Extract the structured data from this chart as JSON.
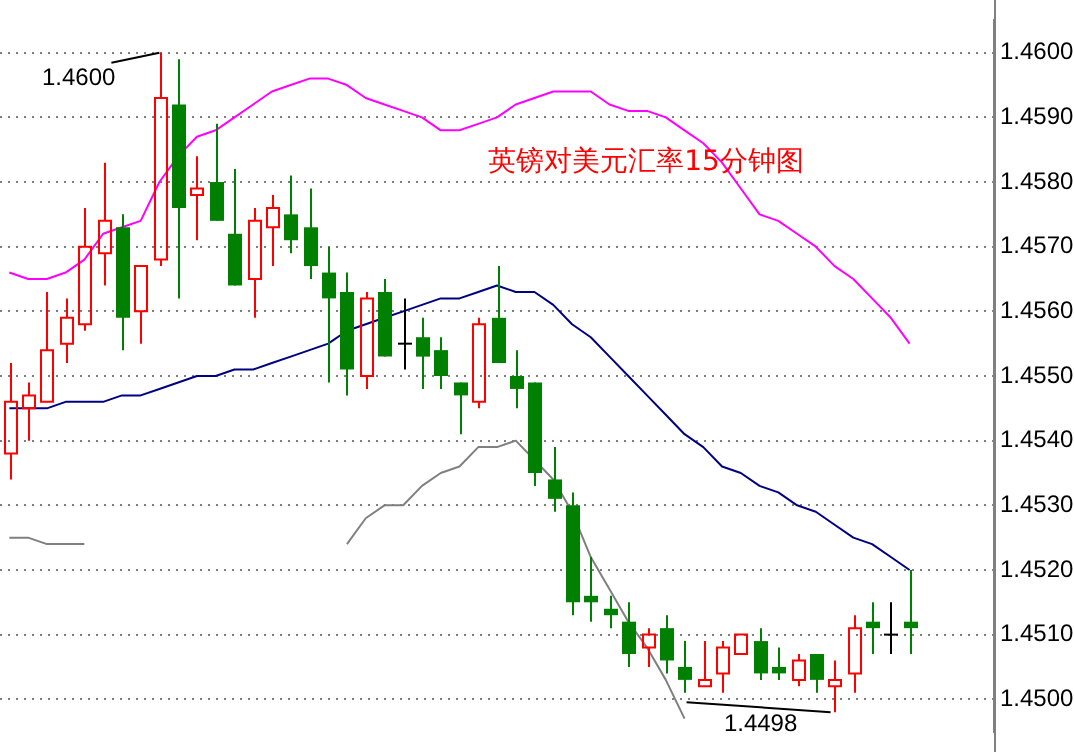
{
  "chart_data": {
    "type": "candlestick",
    "title": "英镑对美元汇率15分钟图",
    "categories": [
      null,
      null,
      null,
      null,
      null,
      null,
      null,
      null,
      null,
      null,
      null,
      null,
      null,
      null,
      null,
      null,
      null,
      null,
      null,
      null,
      null,
      null,
      null,
      null,
      null,
      null,
      null,
      null,
      null,
      null,
      null,
      null,
      null,
      null,
      null,
      null,
      null,
      null,
      null,
      null,
      null,
      null,
      null,
      null,
      null,
      null,
      null,
      null,
      null,
      null,
      null,
      null,
      null
    ],
    "ohlc": [
      [
        1.4538,
        1.4552,
        1.4534,
        1.4546
      ],
      [
        1.4545,
        1.4549,
        1.454,
        1.4547
      ],
      [
        1.4546,
        1.4563,
        1.4546,
        1.4554
      ],
      [
        1.4555,
        1.4562,
        1.4552,
        1.4559
      ],
      [
        1.4558,
        1.4576,
        1.4557,
        1.457
      ],
      [
        1.4569,
        1.4583,
        1.4564,
        1.4574
      ],
      [
        1.4573,
        1.4575,
        1.4554,
        1.4559
      ],
      [
        1.456,
        1.4567,
        1.4555,
        1.4567
      ],
      [
        1.4568,
        1.46,
        1.4567,
        1.4593
      ],
      [
        1.4592,
        1.4599,
        1.4562,
        1.4576
      ],
      [
        1.4578,
        1.4584,
        1.4571,
        1.4579
      ],
      [
        1.458,
        1.4589,
        1.4574,
        1.4574
      ],
      [
        1.4572,
        1.4582,
        1.4564,
        1.4564
      ],
      [
        1.4565,
        1.4576,
        1.4559,
        1.4574
      ],
      [
        1.4573,
        1.4578,
        1.4567,
        1.4576
      ],
      [
        1.4575,
        1.4581,
        1.4569,
        1.4571
      ],
      [
        1.4573,
        1.4579,
        1.4565,
        1.4567
      ],
      [
        1.4566,
        1.457,
        1.4549,
        1.4562
      ],
      [
        1.4563,
        1.4566,
        1.4547,
        1.4551
      ],
      [
        1.455,
        1.4563,
        1.4548,
        1.4562
      ],
      [
        1.4563,
        1.4565,
        1.4553,
        1.4553
      ],
      [
        1.4555,
        1.4562,
        1.4551,
        1.4555
      ],
      [
        1.4556,
        1.4559,
        1.4548,
        1.4553
      ],
      [
        1.4554,
        1.4556,
        1.4548,
        1.455
      ],
      [
        1.4549,
        1.4549,
        1.4541,
        1.4547
      ],
      [
        1.4546,
        1.4559,
        1.4545,
        1.4558
      ],
      [
        1.4559,
        1.4567,
        1.4552,
        1.4552
      ],
      [
        1.455,
        1.4554,
        1.4545,
        1.4548
      ],
      [
        1.4549,
        1.4549,
        1.4533,
        1.4535
      ],
      [
        1.4534,
        1.4539,
        1.4529,
        1.4531
      ],
      [
        1.453,
        1.4532,
        1.4513,
        1.4515
      ],
      [
        1.4516,
        1.4522,
        1.4512,
        1.4515
      ],
      [
        1.4514,
        1.4516,
        1.4511,
        1.4513
      ],
      [
        1.4512,
        1.4515,
        1.4505,
        1.4507
      ],
      [
        1.4508,
        1.4511,
        1.4505,
        1.451
      ],
      [
        1.4511,
        1.4513,
        1.4504,
        1.4506
      ],
      [
        1.4505,
        1.4509,
        1.4501,
        1.4503
      ],
      [
        1.4502,
        1.4509,
        1.4502,
        1.4503
      ],
      [
        1.4504,
        1.4509,
        1.4501,
        1.4508
      ],
      [
        1.4507,
        1.451,
        1.4507,
        1.451
      ],
      [
        1.4509,
        1.4511,
        1.4503,
        1.4504
      ],
      [
        1.4505,
        1.4508,
        1.4503,
        1.4504
      ],
      [
        1.4503,
        1.4507,
        1.4502,
        1.4506
      ],
      [
        1.4507,
        1.4507,
        1.4501,
        1.4503
      ],
      [
        1.4502,
        1.4506,
        1.4498,
        1.4503
      ],
      [
        1.4504,
        1.4513,
        1.4501,
        1.4511
      ],
      [
        1.4512,
        1.4515,
        1.4507,
        1.4511
      ],
      [
        1.451,
        1.4515,
        1.4507,
        1.451
      ],
      [
        1.4512,
        1.452,
        1.4507,
        1.4511
      ],
      null,
      null,
      null,
      null
    ],
    "colors": [
      "#ff0000",
      "#ff0000",
      "#ff0000",
      "#ff0000",
      "#ff0000",
      "#ff0000",
      "#008000",
      "#ff0000",
      "#ff0000",
      "#008000",
      "#ff0000",
      "#008000",
      "#008000",
      "#ff0000",
      "#ff0000",
      "#008000",
      "#008000",
      "#008000",
      "#008000",
      "#ff0000",
      "#008000",
      "#000000",
      "#008000",
      "#008000",
      "#008000",
      "#ff0000",
      "#008000",
      "#008000",
      "#008000",
      "#008000",
      "#008000",
      "#008000",
      "#008000",
      "#008000",
      "#ff0000",
      "#008000",
      "#008000",
      "#ff0000",
      "#ff0000",
      "#ff0000",
      "#008000",
      "#008000",
      "#ff0000",
      "#008000",
      "#ff0000",
      "#ff0000",
      "#008000",
      "#000000",
      "#008000",
      null,
      null,
      null,
      null
    ],
    "series": [
      {
        "type": "line",
        "color": "#ff00ff",
        "values": [
          1.4566,
          1.4565,
          1.4565,
          1.4566,
          1.4568,
          1.4572,
          1.4573,
          1.4574,
          1.458,
          1.4584,
          1.4587,
          1.4588,
          1.459,
          1.4592,
          1.4594,
          1.4595,
          1.4596,
          1.4596,
          1.4595,
          1.4593,
          1.4592,
          1.4591,
          1.459,
          1.4588,
          1.4588,
          1.4589,
          1.459,
          1.4592,
          1.4593,
          1.4594,
          1.4594,
          1.4594,
          1.4592,
          1.4591,
          1.4591,
          1.459,
          1.4588,
          1.4586,
          1.4583,
          1.4579,
          1.4575,
          1.4574,
          1.4572,
          1.457,
          1.4567,
          1.4565,
          1.4562,
          1.4559,
          1.4555,
          null,
          null,
          null,
          null
        ]
      },
      {
        "type": "line",
        "color": "#000080",
        "values": [
          1.4545,
          1.4545,
          1.4545,
          1.4546,
          1.4546,
          1.4546,
          1.4547,
          1.4547,
          1.4548,
          1.4549,
          1.455,
          1.455,
          1.4551,
          1.4551,
          1.4552,
          1.4553,
          1.4554,
          1.4555,
          1.4557,
          1.4558,
          1.4559,
          1.456,
          1.4561,
          1.4562,
          1.4562,
          1.4563,
          1.4564,
          1.4563,
          1.4563,
          1.4561,
          1.4558,
          1.4556,
          1.4553,
          1.455,
          1.4547,
          1.4544,
          1.4541,
          1.4539,
          1.4536,
          1.4535,
          1.4533,
          1.4532,
          1.453,
          1.4529,
          1.4527,
          1.4525,
          1.4524,
          1.4522,
          1.452,
          null,
          null,
          null,
          null
        ]
      },
      {
        "type": "line",
        "color": "#808080",
        "values": [
          1.4525,
          1.4525,
          1.4524,
          1.4524,
          1.4524,
          null,
          null,
          null,
          null,
          null,
          null,
          null,
          null,
          null,
          null,
          null,
          null,
          null,
          1.4524,
          1.4528,
          1.453,
          1.453,
          1.4533,
          1.4535,
          1.4536,
          1.4539,
          1.4539,
          1.454,
          1.4537,
          1.4534,
          1.4529,
          1.4522,
          1.4517,
          1.4512,
          1.4508,
          1.4503,
          1.4497,
          null,
          null,
          null,
          null,
          null,
          null,
          null,
          null,
          null,
          null,
          null,
          null,
          null,
          null,
          null,
          null
        ]
      }
    ],
    "ylim": [
      1.4495,
      1.4605
    ],
    "yticks": [
      {
        "value": 1.45,
        "label": "1.4500"
      },
      {
        "value": 1.451,
        "label": "1.4510"
      },
      {
        "value": 1.452,
        "label": "1.4520"
      },
      {
        "value": 1.453,
        "label": "1.4530"
      },
      {
        "value": 1.454,
        "label": "1.4540"
      },
      {
        "value": 1.455,
        "label": "1.4550"
      },
      {
        "value": 1.456,
        "label": "1.4560"
      },
      {
        "value": 1.457,
        "label": "1.4570"
      },
      {
        "value": 1.458,
        "label": "1.4580"
      },
      {
        "value": 1.459,
        "label": "1.4590"
      },
      {
        "value": 1.46,
        "label": "1.4600"
      }
    ],
    "grid": "y",
    "tick_labels": "y",
    "annotations": [
      "1.4600",
      "1.4498"
    ]
  }
}
